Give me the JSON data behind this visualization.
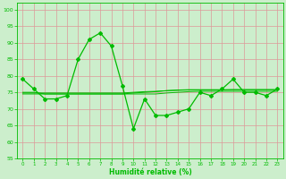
{
  "x": [
    0,
    1,
    2,
    3,
    4,
    5,
    6,
    7,
    8,
    9,
    10,
    11,
    12,
    13,
    14,
    15,
    16,
    17,
    18,
    19,
    20,
    21,
    22,
    23
  ],
  "y_main": [
    79,
    76,
    73,
    73,
    74,
    85,
    91,
    93,
    89,
    77,
    64,
    73,
    68,
    68,
    69,
    70,
    75,
    74,
    76,
    79,
    75,
    75,
    74,
    76
  ],
  "y_trend1": [
    75,
    75,
    74.5,
    74.5,
    74.5,
    74.5,
    74.5,
    74.5,
    74.5,
    74.5,
    74.5,
    74.5,
    74.5,
    74.8,
    75,
    75.2,
    75.3,
    75.3,
    75.3,
    75.3,
    75.3,
    75.3,
    75.3,
    75.3
  ],
  "y_trend2": [
    74.5,
    74.5,
    74.5,
    74.5,
    74.5,
    74.5,
    74.5,
    74.5,
    74.5,
    74.5,
    74.8,
    75,
    75.2,
    75.5,
    75.7,
    75.8,
    75.8,
    75.8,
    75.8,
    75.8,
    75.8,
    75.8,
    75.8,
    75.8
  ],
  "y_trend3": [
    74.8,
    74.8,
    74.8,
    74.8,
    74.8,
    74.8,
    74.8,
    74.8,
    74.8,
    74.8,
    75,
    75.2,
    75.3,
    75.5,
    75.6,
    75.7,
    75.7,
    75.7,
    75.7,
    75.8,
    75.8,
    75.8,
    75.8,
    75.8
  ],
  "line_color": "#00bb00",
  "bg_color": "#cceecc",
  "grid_color": "#dd9999",
  "xlabel": "Humidité relative (%)",
  "ylim": [
    55,
    102
  ],
  "xlim": [
    -0.5,
    23.5
  ],
  "yticks": [
    55,
    60,
    65,
    70,
    75,
    80,
    85,
    90,
    95,
    100
  ],
  "xticks": [
    0,
    1,
    2,
    3,
    4,
    5,
    6,
    7,
    8,
    9,
    10,
    11,
    12,
    13,
    14,
    15,
    16,
    17,
    18,
    19,
    20,
    21,
    22,
    23
  ]
}
